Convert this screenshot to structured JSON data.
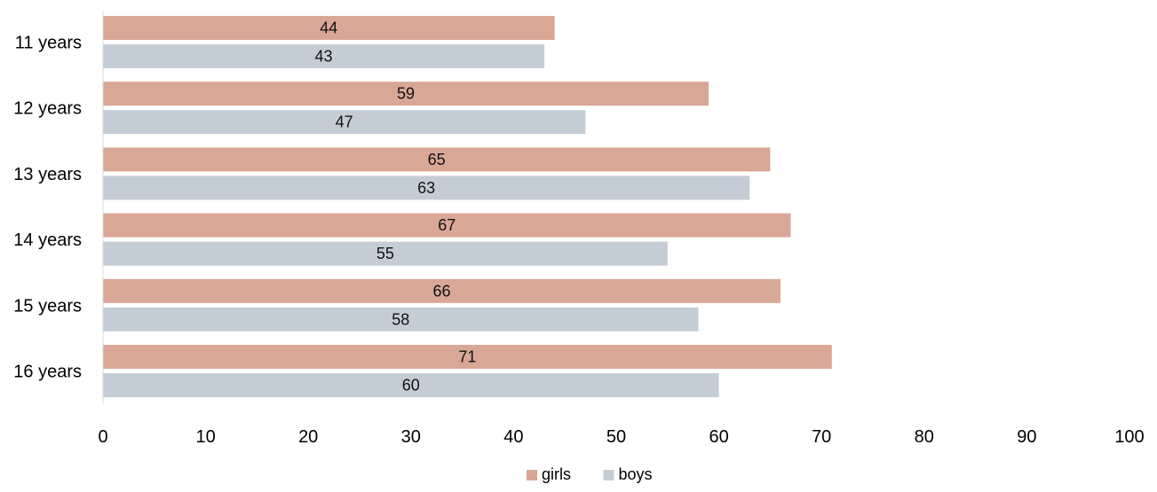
{
  "chart_data": {
    "type": "bar",
    "orientation": "horizontal",
    "categories": [
      "11 years",
      "12 years",
      "13 years",
      "14 years",
      "15 years",
      "16 years"
    ],
    "series": [
      {
        "name": "girls",
        "color": "#d9a796",
        "values": [
          44,
          59,
          65,
          67,
          66,
          71
        ]
      },
      {
        "name": "boys",
        "color": "#c4cdd6",
        "values": [
          43,
          47,
          63,
          55,
          58,
          60
        ]
      }
    ],
    "xlim": [
      0,
      100
    ],
    "x_ticks": [
      0,
      10,
      20,
      30,
      40,
      50,
      60,
      70,
      80,
      90,
      100
    ],
    "title": "",
    "xlabel": "",
    "ylabel": "",
    "grid": false,
    "data_labels": true,
    "legend_position": "bottom"
  }
}
